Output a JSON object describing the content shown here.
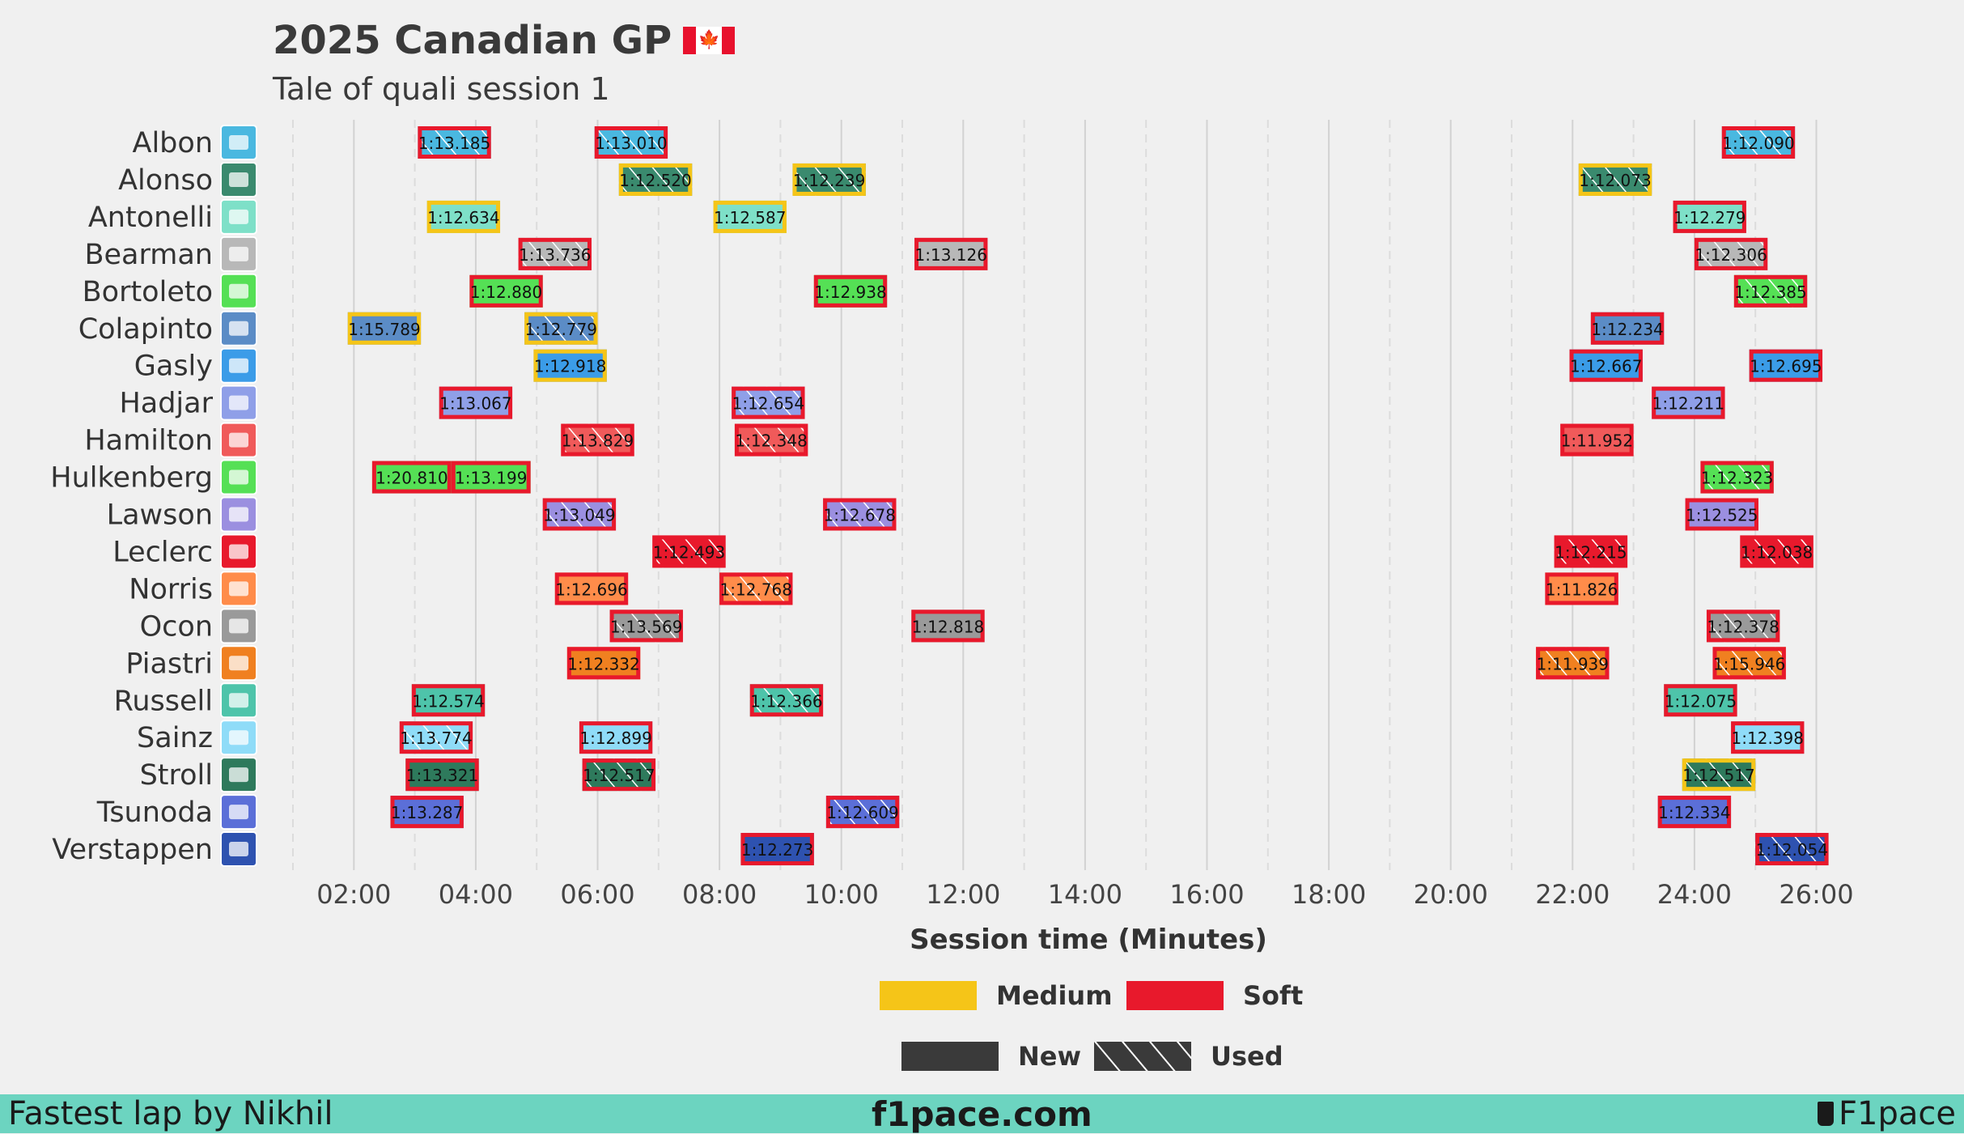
{
  "header": {
    "title": "2025 Canadian GP",
    "subtitle": "Tale of quali session 1"
  },
  "footer": {
    "left": "Fastest lap by Nikhil",
    "center": "f1pace.com",
    "right": "F1pace"
  },
  "colors": {
    "medium": "#f5c518",
    "soft": "#e8192c",
    "new": "#3a3a3a"
  },
  "chart_data": {
    "type": "timeline",
    "xlabel": "Session time (Minutes)",
    "xlim": [
      0,
      27.5
    ],
    "x_ticks": [
      "02:00",
      "04:00",
      "06:00",
      "08:00",
      "10:00",
      "12:00",
      "14:00",
      "16:00",
      "18:00",
      "20:00",
      "22:00",
      "24:00",
      "26:00"
    ],
    "x_tick_values": [
      2,
      4,
      6,
      8,
      10,
      12,
      14,
      16,
      18,
      20,
      22,
      24,
      26
    ],
    "legend_compounds": [
      {
        "label": "Medium",
        "color": "#f5c518"
      },
      {
        "label": "Soft",
        "color": "#e8192c"
      }
    ],
    "legend_wear": [
      {
        "label": "New",
        "pattern": "solid"
      },
      {
        "label": "Used",
        "pattern": "hatched"
      }
    ],
    "drivers": [
      {
        "name": "Albon",
        "team_icon": "williams-logo-icon",
        "team_color": "#4ab8e0",
        "laps": [
          {
            "start": 3.05,
            "end": 4.25,
            "lap": "1:13.185",
            "compound": "soft",
            "used": true
          },
          {
            "start": 5.95,
            "end": 7.15,
            "lap": "1:13.010",
            "compound": "soft",
            "used": true
          },
          {
            "start": 24.45,
            "end": 25.65,
            "lap": "1:12.090",
            "compound": "soft",
            "used": true
          }
        ]
      },
      {
        "name": "Alonso",
        "team_icon": "aston-martin-logo-icon",
        "team_color": "#3a8a6e",
        "laps": [
          {
            "start": 6.35,
            "end": 7.55,
            "lap": "1:12.520",
            "compound": "medium",
            "used": true
          },
          {
            "start": 9.2,
            "end": 10.4,
            "lap": "1:12.239",
            "compound": "medium",
            "used": true
          },
          {
            "start": 22.1,
            "end": 23.3,
            "lap": "1:12.073",
            "compound": "medium",
            "used": true
          }
        ]
      },
      {
        "name": "Antonelli",
        "team_icon": "mercedes-logo-icon",
        "team_color": "#7ee0c8",
        "laps": [
          {
            "start": 3.2,
            "end": 4.4,
            "lap": "1:12.634",
            "compound": "medium",
            "used": false
          },
          {
            "start": 7.9,
            "end": 9.1,
            "lap": "1:12.587",
            "compound": "medium",
            "used": false
          },
          {
            "start": 23.65,
            "end": 24.85,
            "lap": "1:12.279",
            "compound": "soft",
            "used": false
          }
        ]
      },
      {
        "name": "Bearman",
        "team_icon": "haas-logo-icon",
        "team_color": "#b8b8b8",
        "laps": [
          {
            "start": 4.7,
            "end": 5.9,
            "lap": "1:13.736",
            "compound": "soft",
            "used": true
          },
          {
            "start": 11.2,
            "end": 12.4,
            "lap": "1:13.126",
            "compound": "soft",
            "used": false
          },
          {
            "start": 24.0,
            "end": 25.2,
            "lap": "1:12.306",
            "compound": "soft",
            "used": true
          }
        ]
      },
      {
        "name": "Bortoleto",
        "team_icon": "sauber-logo-icon",
        "team_color": "#55e055",
        "laps": [
          {
            "start": 3.9,
            "end": 5.1,
            "lap": "1:12.880",
            "compound": "soft",
            "used": false
          },
          {
            "start": 9.55,
            "end": 10.75,
            "lap": "1:12.938",
            "compound": "soft",
            "used": false
          },
          {
            "start": 24.65,
            "end": 25.85,
            "lap": "1:12.385",
            "compound": "soft",
            "used": true
          }
        ]
      },
      {
        "name": "Colapinto",
        "team_icon": "alpine-logo-icon",
        "team_color": "#5b8cc6",
        "laps": [
          {
            "start": 1.9,
            "end": 3.1,
            "lap": "1:15.789",
            "compound": "medium",
            "used": false
          },
          {
            "start": 4.8,
            "end": 6.0,
            "lap": "1:12.779",
            "compound": "medium",
            "used": true
          },
          {
            "start": 22.3,
            "end": 23.5,
            "lap": "1:12.234",
            "compound": "soft",
            "used": false
          }
        ]
      },
      {
        "name": "Gasly",
        "team_icon": "alpine-logo-icon",
        "team_color": "#3b9ce8",
        "laps": [
          {
            "start": 4.95,
            "end": 6.15,
            "lap": "1:12.918",
            "compound": "medium",
            "used": false
          },
          {
            "start": 21.95,
            "end": 23.15,
            "lap": "1:12.667",
            "compound": "soft",
            "used": false
          },
          {
            "start": 24.9,
            "end": 26.1,
            "lap": "1:12.695",
            "compound": "soft",
            "used": false
          }
        ]
      },
      {
        "name": "Hadjar",
        "team_icon": "racing-bulls-logo-icon",
        "team_color": "#8f9fe8",
        "laps": [
          {
            "start": 3.4,
            "end": 4.6,
            "lap": "1:13.067",
            "compound": "soft",
            "used": false
          },
          {
            "start": 8.2,
            "end": 9.4,
            "lap": "1:12.654",
            "compound": "soft",
            "used": true
          },
          {
            "start": 23.3,
            "end": 24.5,
            "lap": "1:12.211",
            "compound": "soft",
            "used": false
          }
        ]
      },
      {
        "name": "Hamilton",
        "team_icon": "ferrari-logo-icon",
        "team_color": "#f05a5a",
        "laps": [
          {
            "start": 5.4,
            "end": 6.6,
            "lap": "1:13.829",
            "compound": "soft",
            "used": true
          },
          {
            "start": 8.25,
            "end": 9.45,
            "lap": "1:12.348",
            "compound": "soft",
            "used": true
          },
          {
            "start": 21.8,
            "end": 23.0,
            "lap": "1:11.952",
            "compound": "soft",
            "used": false
          }
        ]
      },
      {
        "name": "Hulkenberg",
        "team_icon": "sauber-logo-icon",
        "team_color": "#55e055",
        "laps": [
          {
            "start": 2.3,
            "end": 3.6,
            "lap": "1:20.810",
            "compound": "soft",
            "used": false
          },
          {
            "start": 3.6,
            "end": 4.9,
            "lap": "1:13.199",
            "compound": "soft",
            "used": false
          },
          {
            "start": 24.1,
            "end": 25.3,
            "lap": "1:12.323",
            "compound": "soft",
            "used": true
          }
        ]
      },
      {
        "name": "Lawson",
        "team_icon": "racing-bulls-logo-icon",
        "team_color": "#9b8fe0",
        "laps": [
          {
            "start": 5.1,
            "end": 6.3,
            "lap": "1:13.049",
            "compound": "soft",
            "used": true
          },
          {
            "start": 9.7,
            "end": 10.9,
            "lap": "1:12.678",
            "compound": "soft",
            "used": true
          },
          {
            "start": 23.85,
            "end": 25.05,
            "lap": "1:12.525",
            "compound": "soft",
            "used": false
          }
        ]
      },
      {
        "name": "Leclerc",
        "team_icon": "ferrari-logo-icon",
        "team_color": "#e8192c",
        "laps": [
          {
            "start": 6.9,
            "end": 8.1,
            "lap": "1:12.493",
            "compound": "soft",
            "used": true
          },
          {
            "start": 21.7,
            "end": 22.9,
            "lap": "1:12.215",
            "compound": "soft",
            "used": true
          },
          {
            "start": 24.75,
            "end": 25.95,
            "lap": "1:12.038",
            "compound": "soft",
            "used": true
          }
        ]
      },
      {
        "name": "Norris",
        "team_icon": "mclaren-logo-icon",
        "team_color": "#ff8c4a",
        "laps": [
          {
            "start": 5.3,
            "end": 6.5,
            "lap": "1:12.696",
            "compound": "soft",
            "used": false
          },
          {
            "start": 8.0,
            "end": 9.2,
            "lap": "1:12.768",
            "compound": "soft",
            "used": true
          },
          {
            "start": 21.55,
            "end": 22.75,
            "lap": "1:11.826",
            "compound": "soft",
            "used": false
          }
        ]
      },
      {
        "name": "Ocon",
        "team_icon": "haas-logo-icon",
        "team_color": "#9a9a9a",
        "laps": [
          {
            "start": 6.2,
            "end": 7.4,
            "lap": "1:13.569",
            "compound": "soft",
            "used": true
          },
          {
            "start": 11.15,
            "end": 12.35,
            "lap": "1:12.818",
            "compound": "soft",
            "used": false
          },
          {
            "start": 24.2,
            "end": 25.4,
            "lap": "1:12.378",
            "compound": "soft",
            "used": true
          }
        ]
      },
      {
        "name": "Piastri",
        "team_icon": "mclaren-logo-icon",
        "team_color": "#f08020",
        "laps": [
          {
            "start": 5.5,
            "end": 6.7,
            "lap": "1:12.332",
            "compound": "soft",
            "used": false
          },
          {
            "start": 21.4,
            "end": 22.6,
            "lap": "1:11.939",
            "compound": "soft",
            "used": true
          },
          {
            "start": 24.3,
            "end": 25.5,
            "lap": "1:15.946",
            "compound": "soft",
            "used": true
          }
        ]
      },
      {
        "name": "Russell",
        "team_icon": "mercedes-logo-icon",
        "team_color": "#4ec4aa",
        "laps": [
          {
            "start": 2.95,
            "end": 4.15,
            "lap": "1:12.574",
            "compound": "soft",
            "used": false
          },
          {
            "start": 8.5,
            "end": 9.7,
            "lap": "1:12.366",
            "compound": "soft",
            "used": true
          },
          {
            "start": 23.5,
            "end": 24.7,
            "lap": "1:12.075",
            "compound": "soft",
            "used": false
          }
        ]
      },
      {
        "name": "Sainz",
        "team_icon": "williams-logo-icon",
        "team_color": "#8fdcf8",
        "laps": [
          {
            "start": 2.75,
            "end": 3.95,
            "lap": "1:13.774",
            "compound": "soft",
            "used": true
          },
          {
            "start": 5.7,
            "end": 6.9,
            "lap": "1:12.899",
            "compound": "soft",
            "used": false
          },
          {
            "start": 24.6,
            "end": 25.8,
            "lap": "1:12.398",
            "compound": "soft",
            "used": false
          }
        ]
      },
      {
        "name": "Stroll",
        "team_icon": "aston-martin-logo-icon",
        "team_color": "#2e7a5c",
        "laps": [
          {
            "start": 2.85,
            "end": 4.05,
            "lap": "1:13.321",
            "compound": "soft",
            "used": false
          },
          {
            "start": 5.75,
            "end": 6.95,
            "lap": "1:12.517",
            "compound": "soft",
            "used": true
          },
          {
            "start": 23.8,
            "end": 25.0,
            "lap": "1:12.517",
            "compound": "medium",
            "used": true
          }
        ]
      },
      {
        "name": "Tsunoda",
        "team_icon": "red-bull-logo-icon",
        "team_color": "#5b6fd8",
        "laps": [
          {
            "start": 2.6,
            "end": 3.8,
            "lap": "1:13.287",
            "compound": "soft",
            "used": false
          },
          {
            "start": 9.75,
            "end": 10.95,
            "lap": "1:12.609",
            "compound": "soft",
            "used": true
          },
          {
            "start": 23.4,
            "end": 24.6,
            "lap": "1:12.334",
            "compound": "soft",
            "used": false
          }
        ]
      },
      {
        "name": "Verstappen",
        "team_icon": "red-bull-logo-icon",
        "team_color": "#2e52b0",
        "laps": [
          {
            "start": 8.35,
            "end": 9.55,
            "lap": "1:12.273",
            "compound": "soft",
            "used": false
          },
          {
            "start": 25.0,
            "end": 26.2,
            "lap": "1:12.054",
            "compound": "soft",
            "used": true
          }
        ]
      }
    ]
  }
}
